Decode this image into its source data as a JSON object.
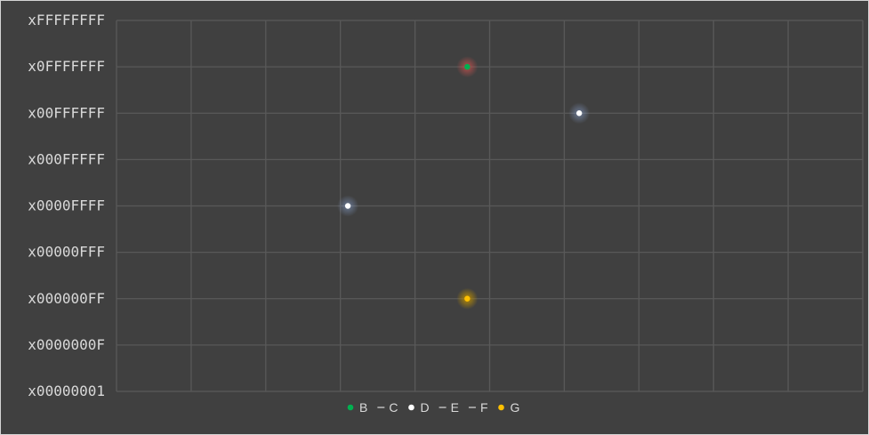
{
  "chart_data": {
    "type": "scatter",
    "title": "",
    "xlabel": "",
    "ylabel": "",
    "y_scale": "log16",
    "y_ticks": [
      "x00000001",
      "x0000000F",
      "x000000FF",
      "x00000FFF",
      "x0000FFFF",
      "x000FFFFF",
      "x00FFFFFF",
      "x0FFFFFFF",
      "xFFFFFFFF"
    ],
    "x_range": [
      0,
      10
    ],
    "x_tick_labels_shown": false,
    "grid": true,
    "legend_position": "bottom",
    "series": [
      {
        "name": "B",
        "marker": "dot",
        "color": "#00b050",
        "glow": "#c0504d",
        "points": [
          {
            "x": 4.7,
            "y": "x0FFFFFFF"
          }
        ]
      },
      {
        "name": "C",
        "marker": "line",
        "color": "#d9d9d9",
        "points": []
      },
      {
        "name": "D",
        "marker": "dot",
        "color": "#ffffff",
        "glow": "#8faadc",
        "points": [
          {
            "x": 3.1,
            "y": "x0000FFFF"
          },
          {
            "x": 6.2,
            "y": "x00FFFFFF"
          }
        ]
      },
      {
        "name": "E",
        "marker": "line",
        "color": "#d9d9d9",
        "points": []
      },
      {
        "name": "F",
        "marker": "line",
        "color": "#d9d9d9",
        "points": []
      },
      {
        "name": "G",
        "marker": "dot",
        "color": "#ffc000",
        "glow": "#bf9000",
        "points": [
          {
            "x": 4.7,
            "y": "x000000FF"
          }
        ]
      }
    ]
  },
  "colors": {
    "background": "#404040",
    "grid": "#595959",
    "text": "#d9d9d9"
  }
}
